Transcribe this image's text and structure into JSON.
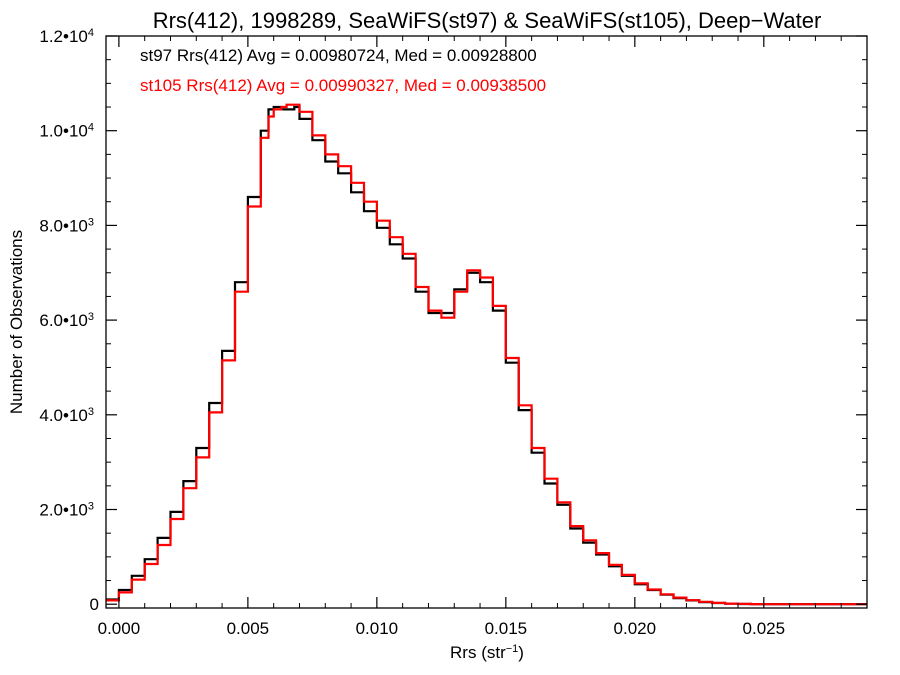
{
  "chart_data": {
    "type": "line",
    "title": "Rrs(412), 1998289, SeaWiFS(st97) & SeaWiFS(st105), Deep−Water",
    "xlabel": {
      "base": "Rrs (str",
      "sup": "−1",
      "close": ")"
    },
    "ylabel": "Number of Observations",
    "xlim": [
      -0.0005,
      0.029
    ],
    "ylim": [
      -80,
      12000
    ],
    "grid": false,
    "step": true,
    "x_ticks": [
      {
        "value": 0.0,
        "label": "0.000"
      },
      {
        "value": 0.005,
        "label": "0.005"
      },
      {
        "value": 0.01,
        "label": "0.010"
      },
      {
        "value": 0.015,
        "label": "0.015"
      },
      {
        "value": 0.02,
        "label": "0.020"
      },
      {
        "value": 0.025,
        "label": "0.025"
      }
    ],
    "y_ticks": [
      {
        "value": 0,
        "label": "0",
        "sup": ""
      },
      {
        "value": 2000,
        "label": "2.0•10",
        "sup": "3"
      },
      {
        "value": 4000,
        "label": "4.0•10",
        "sup": "3"
      },
      {
        "value": 6000,
        "label": "6.0•10",
        "sup": "3"
      },
      {
        "value": 8000,
        "label": "8.0•10",
        "sup": "3"
      },
      {
        "value": 10000,
        "label": "1.0•10",
        "sup": "4"
      },
      {
        "value": 12000,
        "label": "1.2•10",
        "sup": "4"
      }
    ],
    "annotations": [
      {
        "text": "st97 Rrs(412) Avg = 0.00980724, Med = 0.00928800",
        "color": "#000000"
      },
      {
        "text": "st105 Rrs(412) Avg = 0.00990327, Med = 0.00938500",
        "color": "#ff0000"
      }
    ],
    "series": [
      {
        "color": "#000000",
        "x": [
          -0.0005,
          0.0,
          0.0005,
          0.001,
          0.0015,
          0.002,
          0.0025,
          0.003,
          0.0035,
          0.004,
          0.0045,
          0.005,
          0.0055,
          0.0058,
          0.006,
          0.0063,
          0.0065,
          0.0068,
          0.007,
          0.0075,
          0.008,
          0.0085,
          0.009,
          0.0095,
          0.01,
          0.0105,
          0.011,
          0.0115,
          0.012,
          0.0125,
          0.013,
          0.0135,
          0.014,
          0.0145,
          0.015,
          0.0155,
          0.016,
          0.0165,
          0.017,
          0.0175,
          0.018,
          0.0185,
          0.019,
          0.0195,
          0.02,
          0.0205,
          0.021,
          0.0215,
          0.022,
          0.0225,
          0.023,
          0.0235,
          0.024,
          0.0245,
          0.025,
          0.026,
          0.027,
          0.028,
          0.029
        ],
        "y": [
          100,
          300,
          600,
          950,
          1400,
          1950,
          2600,
          3300,
          4250,
          5350,
          6800,
          8600,
          10000,
          10450,
          10500,
          10450,
          10450,
          10500,
          10250,
          9800,
          9350,
          9100,
          8700,
          8300,
          7950,
          7600,
          7300,
          6600,
          6150,
          6150,
          6650,
          7000,
          6800,
          6200,
          5100,
          4100,
          3200,
          2550,
          2100,
          1600,
          1300,
          1050,
          800,
          600,
          420,
          300,
          200,
          130,
          80,
          45,
          25,
          10,
          5,
          2,
          0,
          0,
          0,
          0,
          0
        ]
      },
      {
        "color": "#ff0000",
        "x": [
          -0.0005,
          0.0,
          0.0005,
          0.001,
          0.0015,
          0.002,
          0.0025,
          0.003,
          0.0035,
          0.004,
          0.0045,
          0.005,
          0.0055,
          0.0058,
          0.006,
          0.0063,
          0.0065,
          0.0068,
          0.007,
          0.0075,
          0.008,
          0.0085,
          0.009,
          0.0095,
          0.01,
          0.0105,
          0.011,
          0.0115,
          0.012,
          0.0125,
          0.013,
          0.0135,
          0.014,
          0.0145,
          0.015,
          0.0155,
          0.016,
          0.0165,
          0.017,
          0.0175,
          0.018,
          0.0185,
          0.019,
          0.0195,
          0.02,
          0.0205,
          0.021,
          0.0215,
          0.022,
          0.0225,
          0.023,
          0.0235,
          0.024,
          0.0245,
          0.025,
          0.026,
          0.027,
          0.028,
          0.029
        ],
        "y": [
          80,
          250,
          520,
          850,
          1250,
          1800,
          2450,
          3100,
          4050,
          5150,
          6600,
          8400,
          9850,
          10300,
          10450,
          10500,
          10550,
          10550,
          10400,
          9900,
          9500,
          9250,
          8900,
          8500,
          8100,
          7750,
          7400,
          6700,
          6200,
          6050,
          6600,
          7050,
          6900,
          6300,
          5200,
          4200,
          3300,
          2650,
          2150,
          1650,
          1350,
          1080,
          830,
          620,
          440,
          310,
          210,
          140,
          85,
          50,
          28,
          12,
          6,
          2,
          0,
          0,
          0,
          0,
          0
        ]
      }
    ]
  }
}
